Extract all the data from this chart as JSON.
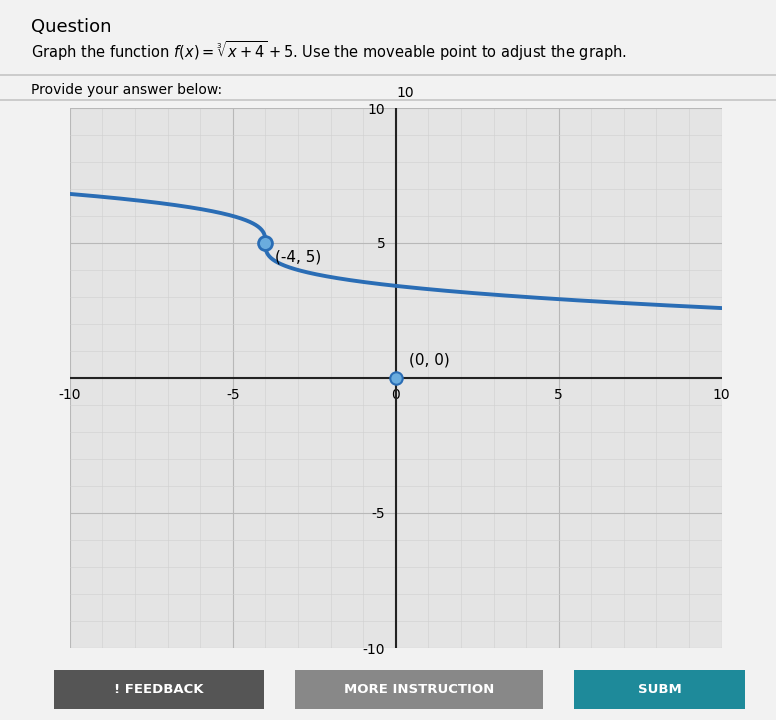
{
  "xlim": [
    -10,
    10
  ],
  "ylim": [
    -10,
    10
  ],
  "xticks": [
    -10,
    -5,
    0,
    5,
    10
  ],
  "yticks": [
    -10,
    -5,
    0,
    5,
    10
  ],
  "curve_color": "#2a6db5",
  "curve_linewidth": 2.8,
  "point1_x": -4,
  "point1_y": 5,
  "point1_label": "(-4, 5)",
  "point2_x": 0,
  "point2_y": 0,
  "point2_label": "(0, 0)",
  "point_color": "#6aacde",
  "point_edge_color": "#2a6db5",
  "point1_size": 100,
  "point2_size": 80,
  "grid_minor_color": "#d0d0d0",
  "grid_major_color": "#b8b8b8",
  "axis_color": "#222222",
  "plot_bg_color": "#e4e4e4",
  "page_bg_color": "#f2f2f2",
  "feedback_btn_color": "#555555",
  "more_btn_color": "#888888",
  "submit_btn_color": "#1e8a9a",
  "header_line_color": "#cccccc"
}
